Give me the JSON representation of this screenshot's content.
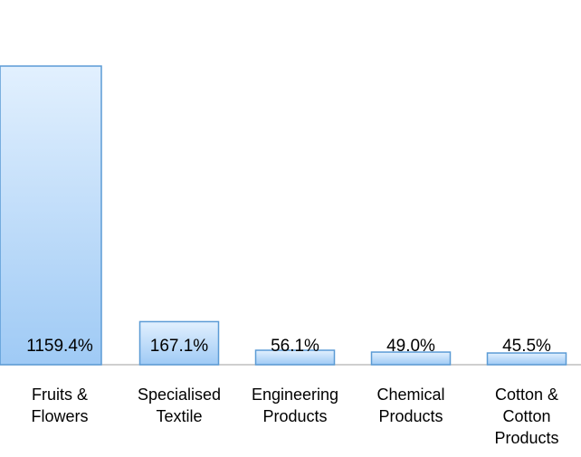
{
  "chart_data": {
    "type": "bar",
    "categories": [
      "Fruits & Flowers",
      "Specialised Textile",
      "Engineering Products",
      "Chemical Products",
      "Cotton & Cotton Products"
    ],
    "values": [
      1159.4,
      167.1,
      56.1,
      49.0,
      45.5
    ],
    "value_labels": [
      "1159.4%",
      "167.1%",
      "56.1%",
      "49.0%",
      "45.5%"
    ],
    "color": "#5b9bd5"
  }
}
